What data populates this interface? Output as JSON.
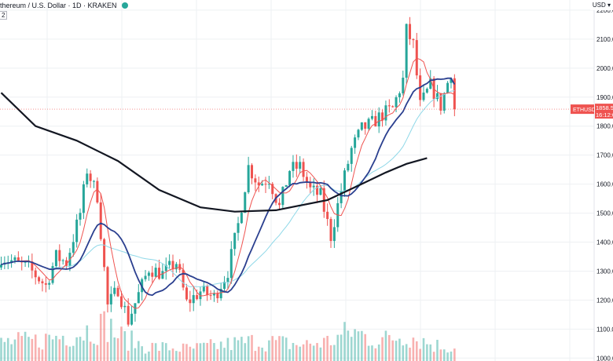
{
  "header": {
    "symbol_line": "thereum / U.S. Dollar · 1D · KRAKEN",
    "indicator_badge": "2",
    "status_color": "#26a69a"
  },
  "axis": {
    "currency": "USD"
  },
  "chart_data": {
    "type": "candlestick",
    "ylim": [
      990,
      2235
    ],
    "ticks": [
      1000,
      1100,
      1200,
      1300,
      1400,
      1500,
      1600,
      1700,
      1800,
      1900,
      2000,
      2100,
      2200
    ],
    "tick_labels": [
      "1000.0",
      "1100.0",
      "1200.0",
      "1300.0",
      "1400.0",
      "1500.0",
      "1600.0",
      "1700.0",
      "1800.0",
      "1900.0",
      "2000.0",
      "2100.0",
      "2200.0"
    ],
    "last_price": 1858.5,
    "price_tag": {
      "symbol": "ETHUSD",
      "price": "1858.5",
      "countdown": "16:12:0"
    },
    "colors": {
      "up": "#26a69a",
      "down": "#ef5350",
      "ma_short": "#ef5350",
      "ma_mid": "#2a3f8f",
      "ma_light": "#8fd8e8",
      "ma_long": "#131722",
      "grid": "#eef0f3"
    },
    "anchors": [
      [
        0,
        1350
      ],
      [
        8,
        1310
      ],
      [
        13,
        1250
      ],
      [
        16,
        1350
      ],
      [
        19,
        1330
      ],
      [
        23,
        1500
      ],
      [
        25,
        1650
      ],
      [
        28,
        1560
      ],
      [
        31,
        1180
      ],
      [
        34,
        1240
      ],
      [
        37,
        1130
      ],
      [
        40,
        1220
      ],
      [
        43,
        1310
      ],
      [
        47,
        1290
      ],
      [
        51,
        1330
      ],
      [
        54,
        1190
      ],
      [
        58,
        1230
      ],
      [
        62,
        1210
      ],
      [
        66,
        1300
      ],
      [
        69,
        1460
      ],
      [
        72,
        1660
      ],
      [
        75,
        1600
      ],
      [
        78,
        1620
      ],
      [
        81,
        1520
      ],
      [
        84,
        1650
      ],
      [
        87,
        1660
      ],
      [
        90,
        1580
      ],
      [
        93,
        1560
      ],
      [
        96,
        1420
      ],
      [
        99,
        1580
      ],
      [
        102,
        1720
      ],
      [
        105,
        1790
      ],
      [
        108,
        1810
      ],
      [
        111,
        1840
      ],
      [
        114,
        1860
      ],
      [
        117,
        1960
      ],
      [
        118,
        2130
      ],
      [
        120,
        2080
      ],
      [
        122,
        1870
      ],
      [
        125,
        1940
      ],
      [
        128,
        1870
      ],
      [
        131,
        1990
      ],
      [
        132,
        1858.5
      ]
    ],
    "ma_long_points": [
      [
        0,
        1915
      ],
      [
        10,
        1800
      ],
      [
        22,
        1750
      ],
      [
        34,
        1680
      ],
      [
        46,
        1580
      ],
      [
        58,
        1520
      ],
      [
        68,
        1505
      ],
      [
        80,
        1510
      ],
      [
        95,
        1545
      ],
      [
        104,
        1595
      ],
      [
        112,
        1640
      ],
      [
        118,
        1670
      ],
      [
        124,
        1690
      ]
    ],
    "volume_points": [
      [
        0,
        28
      ],
      [
        10,
        30
      ],
      [
        22,
        42
      ],
      [
        26,
        48
      ],
      [
        31,
        55
      ],
      [
        34,
        38
      ],
      [
        42,
        22
      ],
      [
        55,
        18
      ],
      [
        66,
        25
      ],
      [
        75,
        30
      ],
      [
        88,
        24
      ],
      [
        96,
        30
      ],
      [
        102,
        45
      ],
      [
        110,
        30
      ],
      [
        118,
        40
      ],
      [
        126,
        24
      ],
      [
        132,
        20
      ]
    ]
  }
}
